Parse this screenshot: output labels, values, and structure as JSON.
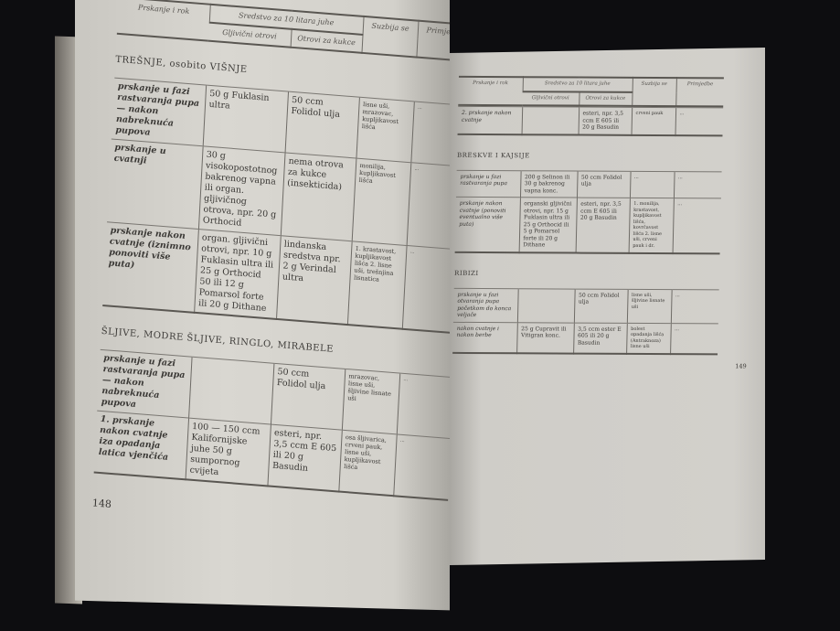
{
  "header": {
    "col0": "Prskanje i rok",
    "group": "Sredstvo za 10 litara juhe",
    "col1": "Gljivični otrovi",
    "col2": "Otrovi za kukce",
    "col3": "Suzbija se",
    "col4": "Primjedbe"
  },
  "left_page": {
    "continued_rows": [],
    "sections": [
      {
        "title": "TREŠNJE, osobito VIŠNJE",
        "rows": [
          [
            "prskanje u fazi rastvaranja pupa — nakon nabreknuća pupova",
            "50 g Fuklasin ultra",
            "50 ccm Folidol ulja",
            "lisne uši, mrazovac, kupljikavost lišća",
            "..."
          ],
          [
            "prskanje u cvatnji",
            "30 g visokopostotnog bakrenog vapna ili organ. gljivičnog otrova, npr. 20 g Orthocid",
            "nema otrova za kukce (insekticida)",
            "monilija, kupljikavost lišća",
            "..."
          ],
          [
            "prskanje nakon cvatnje (iznimno ponoviti više puta)",
            "organ. gljivični otrovi, npr. 10 g Fuklasin ultra ili 25 g Orthocid 50 ili 12 g Pomarsol forte ili 20 g Dithane",
            "lindanska sredstva npr. 2 g Verindal ultra",
            "1. krastavost, kupljikavost lišća 2. lisne uši, trešnjina lisnatica",
            "..."
          ]
        ]
      },
      {
        "title": "ŠLJIVE, MODRE ŠLJIVE, RINGLO, MIRABELE",
        "rows": [
          [
            "prskanje u fazi rastvaranja pupa — nakon nabreknuća pupova",
            "",
            "50 ccm Folidol ulja",
            "mrazovac, lisne uši, šljivine lisnate uši",
            "..."
          ],
          [
            "1. prskanje nakon cvatnje iza opadanja latica vjenčića",
            "100 — 150 ccm Kalifornijske juhe 50 g sumpornog cvijeta",
            "esteri, npr. 3,5 ccm E 605 ili 20 g Basudin",
            "osa šljivarica, crveni pauk, lisne uši, kupljikavost lišća",
            "..."
          ]
        ]
      }
    ],
    "page_number": "148"
  },
  "right_page": {
    "continued_rows": [
      [
        "2. prskanje nakon cvatnje",
        "",
        "esteri, npr. 3,5 ccm E 605 ili 20 g Basudin",
        "crveni pauk",
        "..."
      ]
    ],
    "sections": [
      {
        "title": "BRESKVE I KAJSIJE",
        "rows": [
          [
            "prskanje u fazi rastvaranja pupa",
            "200 g Selinon ili 30 g bakrenog vapna konc.",
            "50 ccm Folidol ulja",
            "...",
            "..."
          ],
          [
            "prskanje nakon cvatnje (ponoviti eventualno više puta)",
            "organski gljivični otrovi, npr. 15 g Fuklasin ultra ili 25 g Orthocid ili 5 g Pomarsol forte ili 20 g Dithane",
            "esteri, npr. 3,5 ccm E 605 ili 20 g Basudin",
            "1. monilija, krastavost, kupljikavost lišća, kovrčavost lišća 2. lisne uši, crveni pauk i dr.",
            "..."
          ]
        ]
      },
      {
        "title": "RIBIZI",
        "rows": [
          [
            "prskanje u fazi otvaranja pupa početkom do konca veljače",
            "",
            "50 ccm Folidol ulja",
            "lisne uši, šljivine lisnate uši",
            "..."
          ],
          [
            "nakon cvatnje i nakon berbe",
            "25 g Cupravit ili Vitigran konc.",
            "3,5 ccm ester E 605 ili 20 g Basudin",
            "bolest opadanja lišća (Antraknoza) lisne uši",
            "..."
          ]
        ]
      }
    ],
    "page_number": "149"
  }
}
